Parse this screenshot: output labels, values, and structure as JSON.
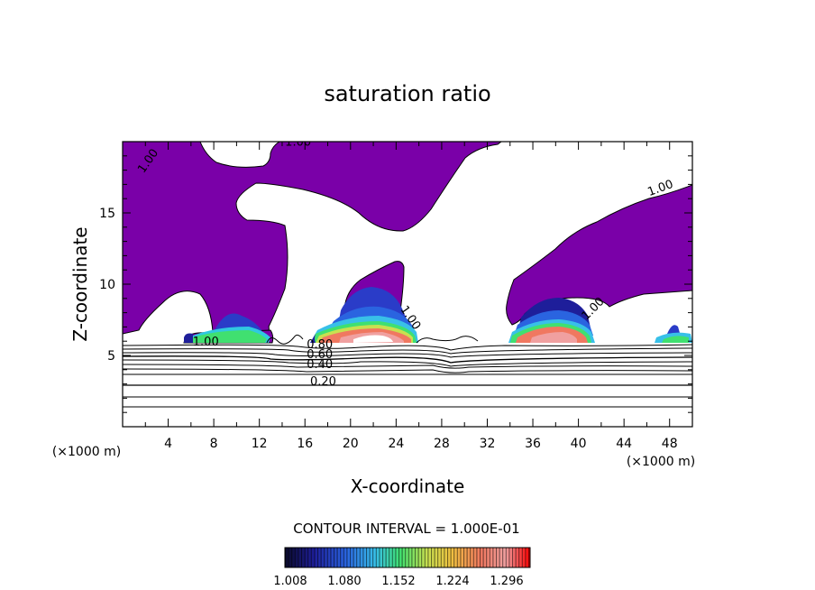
{
  "chart_data": {
    "type": "contour",
    "title": "saturation ratio",
    "xlabel": "X-coordinate",
    "ylabel": "Z-coordinate",
    "x_unit_left": "(×1000 m)",
    "x_unit_right": "(×1000 m)",
    "xlim": [
      0,
      50
    ],
    "ylim": [
      0,
      20
    ],
    "x_ticks": [
      4,
      8,
      12,
      16,
      20,
      24,
      28,
      32,
      36,
      40,
      44,
      48
    ],
    "y_ticks": [
      5,
      10,
      15
    ],
    "contour_interval_text": "CONTOUR INTERVAL = 1.000E-01",
    "contour_labels": [
      {
        "text": "1.00",
        "x": 2.5,
        "y": 18.5,
        "rot": -55
      },
      {
        "text": "1.00",
        "x": 15.4,
        "y": 19.7,
        "rot": 0
      },
      {
        "text": "1.00",
        "x": 47.3,
        "y": 16.5,
        "rot": -20
      },
      {
        "text": "1.00",
        "x": 25.0,
        "y": 7.5,
        "rot": 55
      },
      {
        "text": "1.00",
        "x": 41.5,
        "y": 8.1,
        "rot": -45
      },
      {
        "text": "1.00",
        "x": 7.3,
        "y": 5.7,
        "rot": 0
      },
      {
        "text": "0.80",
        "x": 17.3,
        "y": 5.5,
        "rot": 0
      },
      {
        "text": "0.60",
        "x": 17.3,
        "y": 4.8,
        "rot": 0
      },
      {
        "text": "0.40",
        "x": 17.3,
        "y": 4.1,
        "rot": 0
      },
      {
        "text": "0.20",
        "x": 17.6,
        "y": 2.9,
        "rot": 0
      }
    ],
    "colorbar": {
      "ticks": [
        "1.008",
        "1.080",
        "1.152",
        "1.224",
        "1.296"
      ],
      "colors": [
        "#0a0a2a",
        "#1e1e9a",
        "#2a64e0",
        "#38c0e8",
        "#40e070",
        "#c8e050",
        "#f0c040",
        "#f07860",
        "#f0a0a0",
        "#ff0000"
      ]
    },
    "colors": {
      "subsaturated_fill": "#7a00a8",
      "contour_line": "#000000"
    }
  }
}
